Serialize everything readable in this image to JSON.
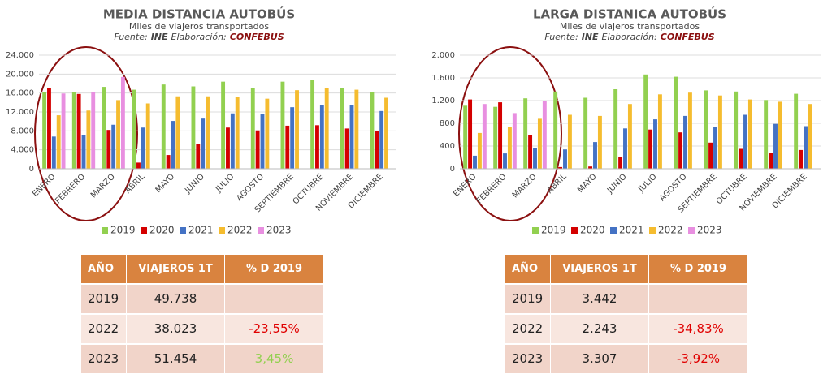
{
  "chart_data": [
    {
      "type": "bar",
      "title": "MEDIA DISTANCIA AUTOBÚS",
      "subtitle": "Miles de viajeros transportados",
      "source_label": "Fuente:",
      "source": "INE",
      "credit_label": "Elaboración:",
      "credit": "CONFEBUS",
      "categories": [
        "ENERO",
        "FEBRERO",
        "MARZO",
        "ABRIL",
        "MAYO",
        "JUNIO",
        "JULIO",
        "AGOSTO",
        "SEPTIEMBRE",
        "OCTUBRE",
        "NOVIEMBRE",
        "DICIEMBRE"
      ],
      "series": [
        {
          "name": "2019",
          "color": "#92d050",
          "values": [
            16200,
            16200,
            17300,
            16700,
            17800,
            17400,
            18400,
            17100,
            18400,
            18800,
            17000,
            16200
          ]
        },
        {
          "name": "2020",
          "color": "#d40000",
          "values": [
            17000,
            15800,
            8200,
            1300,
            2900,
            5200,
            8700,
            8100,
            9100,
            9200,
            8500,
            8000
          ]
        },
        {
          "name": "2021",
          "color": "#4472c4",
          "values": [
            6800,
            7200,
            9300,
            8700,
            10100,
            10600,
            11700,
            11600,
            13000,
            13500,
            13400,
            12200
          ]
        },
        {
          "name": "2022",
          "color": "#f5bc2f",
          "values": [
            11300,
            12300,
            14500,
            13800,
            15300,
            15300,
            15200,
            14800,
            16600,
            17000,
            16700,
            15000
          ]
        },
        {
          "name": "2023",
          "color": "#e88fe0",
          "values": [
            15900,
            16200,
            19400,
            null,
            null,
            null,
            null,
            null,
            null,
            null,
            null,
            null
          ]
        }
      ],
      "ylim": [
        0,
        24000
      ],
      "yticks": [
        0,
        {
          "value": 4000,
          "label": "4.000"
        },
        {
          "value": 8000,
          "label": "8.000"
        },
        {
          "value": 12000,
          "label": "12.000"
        },
        {
          "value": 16000,
          "label": "16.000"
        },
        {
          "value": 20000,
          "label": "20.000"
        },
        {
          "value": 24000,
          "label": "24.000"
        }
      ],
      "grid": true,
      "legend": "bottom"
    },
    {
      "type": "bar",
      "title": "LARGA DISTANICA AUTOBÚS",
      "subtitle": "Miles de viajeros transportados",
      "source_label": "Fuente:",
      "source": "INE",
      "credit_label": "Elaboración:",
      "credit": "CONFEBUS",
      "categories": [
        "ENERO",
        "FEBRERO",
        "MARZO",
        "ABRIL",
        "MAYO",
        "JUNIO",
        "JULIO",
        "AGOSTO",
        "SEPTIEMBRE",
        "OCTUBRE",
        "NOVIEMBRE",
        "DICIEMBRE"
      ],
      "series": [
        {
          "name": "2019",
          "color": "#92d050",
          "values": [
            1110,
            1090,
            1240,
            1360,
            1250,
            1400,
            1660,
            1620,
            1380,
            1360,
            1210,
            1320
          ]
        },
        {
          "name": "2020",
          "color": "#d40000",
          "values": [
            1220,
            1170,
            590,
            30,
            40,
            210,
            690,
            640,
            460,
            350,
            280,
            330
          ]
        },
        {
          "name": "2021",
          "color": "#4472c4",
          "values": [
            230,
            270,
            360,
            340,
            470,
            710,
            870,
            930,
            740,
            950,
            790,
            750
          ]
        },
        {
          "name": "2022",
          "color": "#f5bc2f",
          "values": [
            630,
            730,
            880,
            950,
            930,
            1140,
            1310,
            1340,
            1290,
            1220,
            1180,
            1140
          ]
        },
        {
          "name": "2023",
          "color": "#e88fe0",
          "values": [
            1140,
            980,
            1190,
            null,
            null,
            null,
            null,
            null,
            null,
            null,
            null,
            null
          ]
        }
      ],
      "ylim": [
        0,
        2000
      ],
      "yticks": [
        0,
        {
          "value": 400,
          "label": "400"
        },
        {
          "value": 800,
          "label": "800"
        },
        {
          "value": 1200,
          "label": "1.200"
        },
        {
          "value": 1600,
          "label": "1.600"
        },
        {
          "value": 2000,
          "label": "2.000"
        }
      ],
      "grid": true,
      "legend": "bottom"
    }
  ],
  "tables": [
    {
      "header": [
        "AÑO",
        "VIAJEROS 1T",
        "% D 2019"
      ],
      "rows": [
        [
          "2019",
          "49.738"
        ],
        [
          "2022",
          "38.023",
          "-23,55%"
        ],
        [
          "2023",
          "51.454",
          "3,45%"
        ]
      ],
      "delta_colors": [
        null,
        "#e00000",
        "#92d050"
      ]
    },
    {
      "header": [
        "AÑO",
        "VIAJEROS 1T",
        "% D 2019"
      ],
      "rows": [
        [
          "2019",
          "3.442"
        ],
        [
          "2022",
          "2.243",
          "-34,83%"
        ],
        [
          "2023",
          "3.307",
          "-3,92%"
        ]
      ],
      "delta_colors": [
        null,
        "#e00000",
        "#e00000"
      ]
    }
  ]
}
